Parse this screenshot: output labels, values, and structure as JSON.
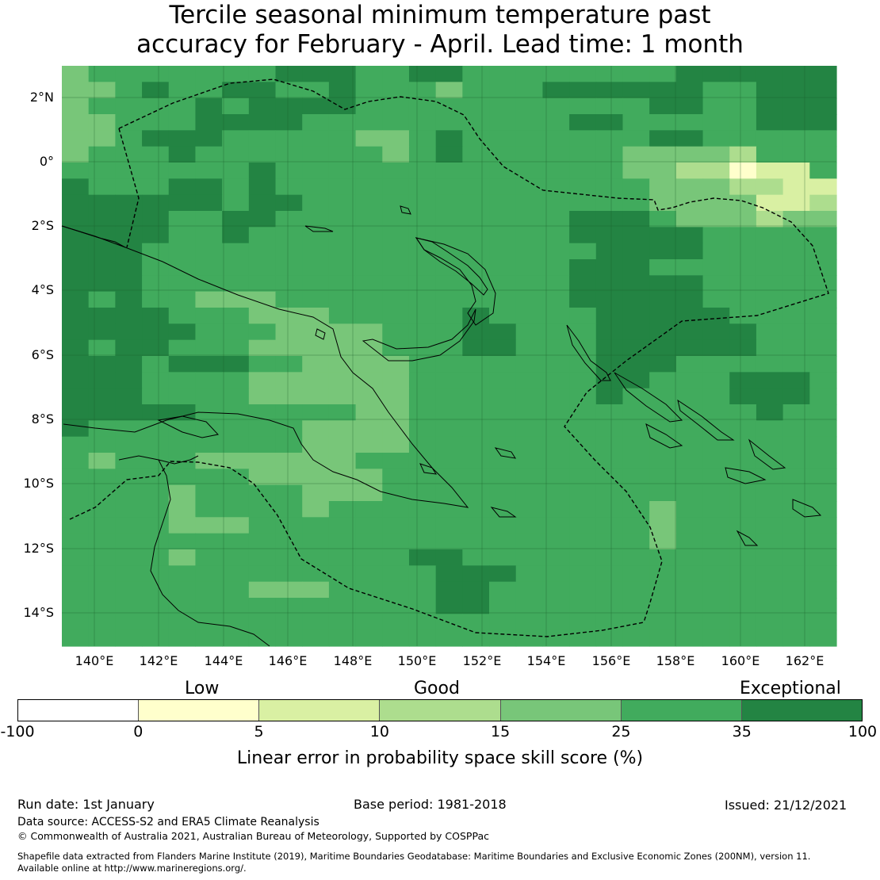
{
  "title": {
    "line1": "Tercile seasonal minimum temperature past",
    "line2": "accuracy for February - April. Lead time: 1 month"
  },
  "map": {
    "lon_labels": [
      "140°E",
      "142°E",
      "144°E",
      "146°E",
      "148°E",
      "150°E",
      "152°E",
      "154°E",
      "156°E",
      "158°E",
      "160°E",
      "162°E"
    ],
    "lat_labels": [
      "2°N",
      "0°",
      "2°S",
      "4°S",
      "6°S",
      "8°S",
      "10°S",
      "12°S",
      "14°S"
    ]
  },
  "legend": {
    "categories": [
      "Low",
      "Good",
      "Exceptional"
    ],
    "ticks": [
      "-100",
      "0",
      "5",
      "10",
      "15",
      "25",
      "35",
      "100"
    ],
    "colors": [
      "#ffffff",
      "#ffffcc",
      "#d9f0a3",
      "#addd8e",
      "#78c679",
      "#41ab5d",
      "#238443"
    ],
    "label": "Linear error in probability space skill score (%)"
  },
  "footer": {
    "run_date": "Run date: 1st January",
    "base_period": "Base period: 1981-2018",
    "issued": "Issued: 21/12/2021",
    "data_source": "Data source: ACCESS-S2 and ERA5 Climate Reanalysis",
    "copyright": "© Commonwealth of Australia 2021, Australian Bureau of Meteorology, Supported by COSPPac",
    "shapefile_line1": "Shapefile data extracted from Flanders Marine Institute (2019), Maritime Boundaries Geodatabase: Maritime Boundaries and Exclusive Economic Zones (200NM), version 11.",
    "shapefile_line2": "Available online at http://www.marineregions.org/."
  }
}
